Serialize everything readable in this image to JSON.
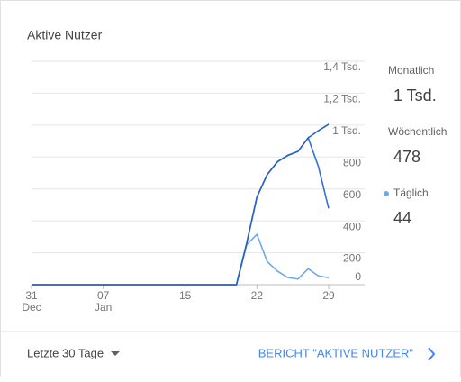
{
  "chart_data": {
    "type": "line",
    "title": "Aktive Nutzer",
    "categories": [
      "31",
      null,
      null,
      null,
      null,
      null,
      null,
      "07",
      null,
      null,
      null,
      null,
      null,
      null,
      null,
      "15",
      null,
      null,
      null,
      null,
      null,
      null,
      "22",
      null,
      null,
      null,
      null,
      null,
      null,
      "29"
    ],
    "month_labels": [
      "Dec",
      null,
      null,
      null,
      null,
      null,
      null,
      "Jan",
      null,
      null,
      null,
      null,
      null,
      null,
      null,
      null,
      null,
      null,
      null,
      null,
      null,
      null,
      null,
      null,
      null,
      null,
      null,
      null,
      null,
      null
    ],
    "ylim": [
      0,
      1400
    ],
    "yticks": [
      0,
      200,
      400,
      600,
      800,
      {
        "value": 1000,
        "label": "1 Tsd."
      },
      {
        "value": 1200,
        "label": "1,2 Tsd."
      },
      {
        "value": 1400,
        "label": "1,4 Tsd."
      }
    ],
    "grid": true,
    "series": [
      {
        "name": "Monatlich",
        "color": "#2a63c2",
        "summary": "1 Tsd.",
        "legend_dot": false,
        "values": [
          0,
          0,
          0,
          0,
          0,
          0,
          0,
          0,
          0,
          0,
          0,
          0,
          0,
          0,
          0,
          0,
          0,
          0,
          0,
          0,
          0,
          260,
          550,
          690,
          770,
          810,
          835,
          920,
          965,
          1005
        ]
      },
      {
        "name": "Wöchentlich",
        "color": "#3471d4",
        "summary": "478",
        "legend_dot": false,
        "values": [
          0,
          0,
          0,
          0,
          0,
          0,
          0,
          0,
          0,
          0,
          0,
          0,
          0,
          0,
          0,
          0,
          0,
          0,
          0,
          0,
          0,
          260,
          550,
          690,
          770,
          810,
          835,
          920,
          740,
          478
        ]
      },
      {
        "name": "Täglich",
        "color": "#6fa8ec",
        "summary": "44",
        "legend_dot": true,
        "values": [
          0,
          0,
          0,
          0,
          0,
          0,
          0,
          0,
          0,
          0,
          0,
          0,
          0,
          0,
          0,
          0,
          0,
          0,
          0,
          0,
          0,
          250,
          315,
          145,
          85,
          45,
          35,
          100,
          55,
          44
        ]
      }
    ]
  },
  "footer": {
    "range": "Letzte 30 Tage",
    "link": "BERICHT \"AKTIVE NUTZER\""
  }
}
